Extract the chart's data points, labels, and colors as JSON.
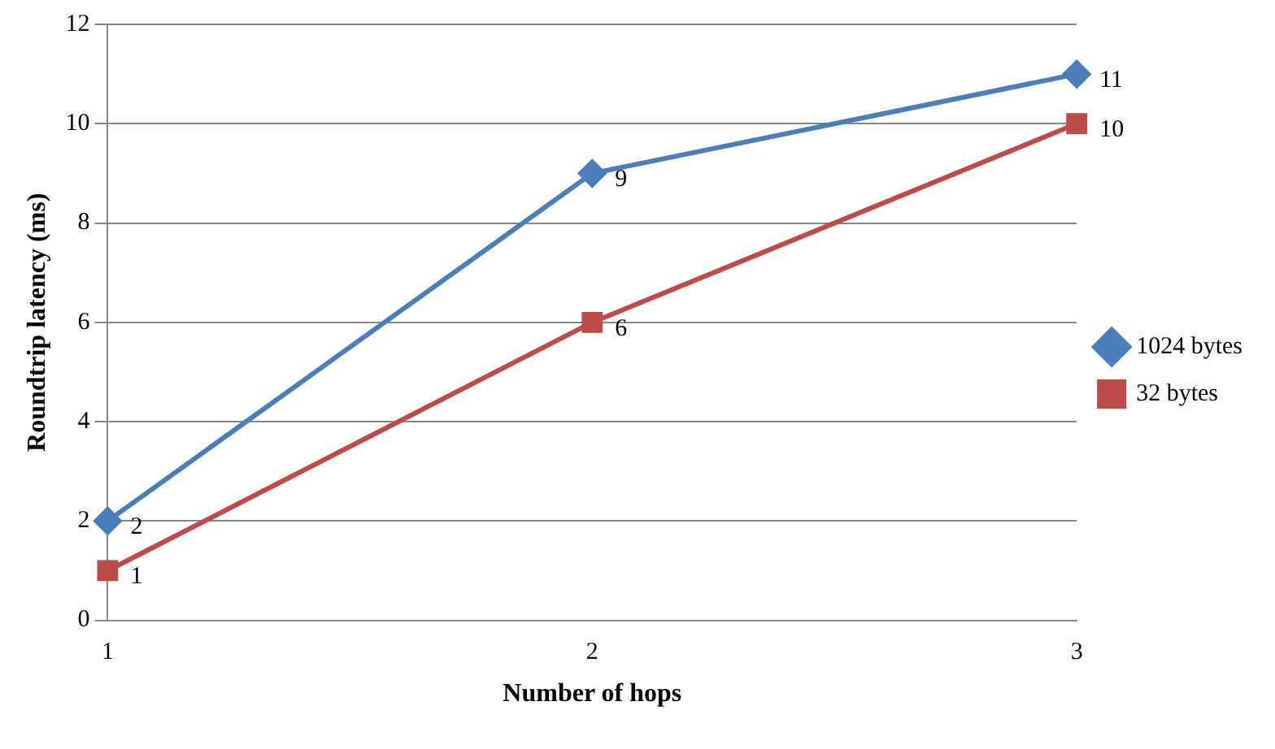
{
  "chart_data": {
    "type": "line",
    "xlabel": "Number of hops",
    "ylabel": "Roundtrip latency (ms)",
    "categories": [
      "1",
      "2",
      "3"
    ],
    "series": [
      {
        "name": "1024 bytes",
        "color": "#4a7ebb",
        "marker": "diamond",
        "values": [
          2,
          9,
          11
        ]
      },
      {
        "name": "32 bytes",
        "color": "#be4b48",
        "marker": "square",
        "values": [
          1,
          6,
          10
        ]
      }
    ],
    "ylim": [
      0,
      12
    ],
    "yticks": [
      0,
      2,
      4,
      6,
      8,
      10,
      12
    ],
    "grid": "y",
    "legend": "right",
    "data_labels": true,
    "line_style": "solid"
  }
}
